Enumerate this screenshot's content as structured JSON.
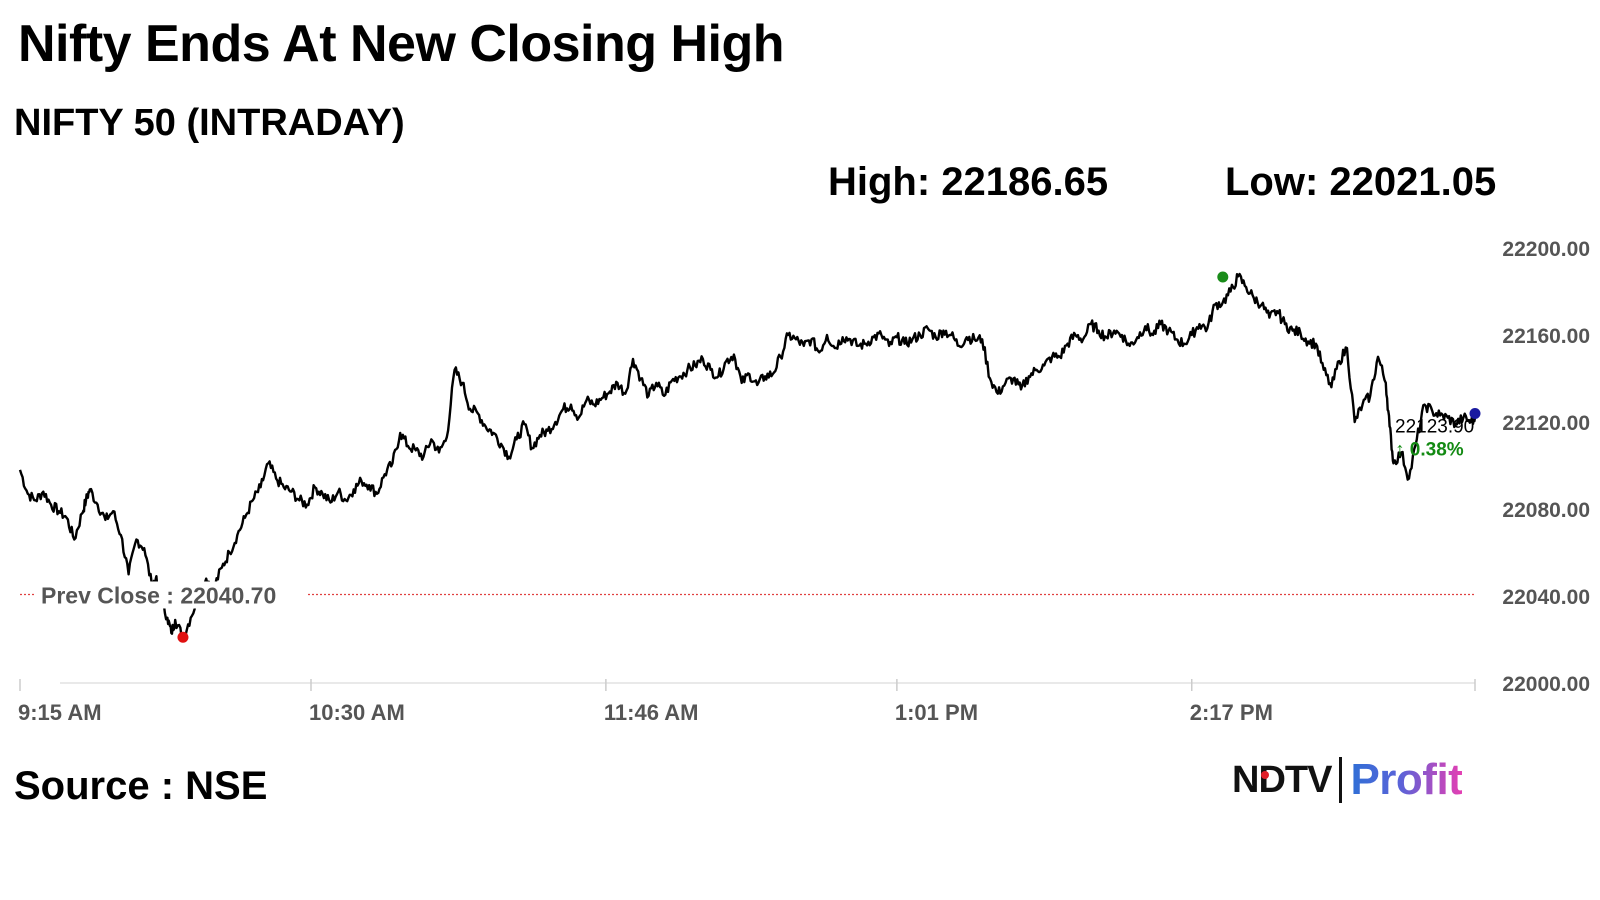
{
  "header": {
    "title": "Nifty Ends At New Closing High",
    "subtitle": "NIFTY 50 (INTRADAY)",
    "high_label": "High: 22186.65",
    "low_label": "Low: 22021.05"
  },
  "footer": {
    "source": "Source : NSE",
    "logo_ndtv": "NDTV",
    "logo_profit": "Profit"
  },
  "colors": {
    "line": "#000000",
    "prev_close": "#e04040",
    "high_marker": "#1a8c1a",
    "low_marker": "#e01010",
    "last_marker": "#1a1aa0",
    "change_up": "#138a13"
  },
  "chart_data": {
    "type": "line",
    "title": "NIFTY 50 (INTRADAY)",
    "xlabel": "",
    "ylabel": "",
    "ylim": [
      22000,
      22200
    ],
    "yticks": [
      22000,
      22040,
      22080,
      22120,
      22160,
      22200
    ],
    "ytick_labels": [
      "22000.00",
      "22040.00",
      "22080.00",
      "22120.00",
      "22160.00",
      "22200.00"
    ],
    "xlim_minutes": [
      0,
      375
    ],
    "xticks_minutes": [
      0,
      75,
      151,
      226,
      302
    ],
    "xtick_labels": [
      "9:15 AM",
      "10:30 AM",
      "11:46 AM",
      "1:01 PM",
      "2:17 PM"
    ],
    "prev_close": 22040.7,
    "prev_close_label": "Prev Close : 22040.70",
    "high": {
      "minute": 310,
      "value": 22186.65
    },
    "low": {
      "minute": 42,
      "value": 22021.05
    },
    "last": {
      "minute": 375,
      "value": 22123.9,
      "label": "22123.90",
      "change_label": "↑ 0.38%"
    },
    "series": [
      {
        "x": [
          0,
          2,
          4,
          6,
          8,
          10,
          12,
          14,
          16,
          17,
          18,
          20,
          22,
          24,
          26,
          28,
          30,
          32,
          34,
          35,
          36,
          38,
          39,
          40,
          42,
          44,
          46,
          48,
          50,
          52,
          54,
          56,
          58,
          60,
          62,
          64,
          66,
          68,
          70,
          72,
          74,
          76,
          78,
          80,
          82,
          84,
          86,
          88,
          90,
          92,
          94,
          96,
          98,
          100,
          102,
          104,
          106,
          108,
          110,
          112,
          114,
          116,
          118,
          120,
          122,
          124,
          126,
          128,
          130,
          132,
          134,
          136,
          138,
          140,
          142,
          144,
          146,
          148,
          150,
          152,
          154,
          156,
          158,
          160,
          162,
          164,
          166,
          168,
          170,
          172,
          174,
          176,
          178,
          180,
          182,
          184,
          186,
          188,
          190,
          192,
          194,
          196,
          198,
          200,
          202,
          204,
          206,
          208,
          210,
          212,
          214,
          216,
          218,
          220,
          222,
          224,
          226,
          228,
          230,
          232,
          234,
          236,
          238,
          240,
          242,
          244,
          246,
          248,
          250,
          252,
          254,
          256,
          258,
          260,
          262,
          264,
          266,
          268,
          270,
          272,
          274,
          276,
          278,
          280,
          282,
          284,
          286,
          288,
          290,
          292,
          294,
          296,
          298,
          300,
          302,
          304,
          306,
          308,
          310,
          312,
          314,
          316,
          318,
          320,
          322,
          324,
          326,
          328,
          330,
          332,
          334,
          336,
          338,
          340,
          342,
          344,
          346,
          348,
          350,
          352,
          353,
          354,
          356,
          358,
          360,
          362,
          364,
          366,
          368,
          370,
          372,
          374,
          375
        ],
        "values": [
          22098,
          22087,
          22084,
          22088,
          22082,
          22079,
          22076,
          22066,
          22078,
          22084,
          22089,
          22082,
          22075,
          22079,
          22068,
          22050,
          22066,
          22062,
          22045,
          22048,
          22040,
          22030,
          22023,
          22029,
          22021,
          22030,
          22040,
          22048,
          22044,
          22053,
          22060,
          22068,
          22076,
          22084,
          22090,
          22101,
          22094,
          22090,
          22088,
          22084,
          22082,
          22090,
          22087,
          22083,
          22088,
          22084,
          22089,
          22093,
          22091,
          22087,
          22096,
          22101,
          22115,
          22109,
          22107,
          22104,
          22112,
          22106,
          22113,
          22144,
          22138,
          22126,
          22124,
          22118,
          22115,
          22110,
          22104,
          22112,
          22119,
          22108,
          22114,
          22116,
          22120,
          22126,
          22128,
          22122,
          22130,
          22128,
          22131,
          22134,
          22138,
          22133,
          22149,
          22140,
          22132,
          22138,
          22132,
          22139,
          22141,
          22144,
          22146,
          22149,
          22144,
          22141,
          22148,
          22151,
          22138,
          22142,
          22137,
          22141,
          22142,
          22150,
          22160,
          22158,
          22155,
          22158,
          22152,
          22160,
          22154,
          22159,
          22158,
          22155,
          22156,
          22159,
          22160,
          22155,
          22159,
          22156,
          22158,
          22160,
          22163,
          22159,
          22162,
          22160,
          22155,
          22159,
          22158,
          22158,
          22140,
          22133,
          22138,
          22140,
          22135,
          22141,
          22144,
          22146,
          22150,
          22150,
          22156,
          22160,
          22158,
          22165,
          22162,
          22159,
          22162,
          22160,
          22155,
          22159,
          22164,
          22160,
          22165,
          22162,
          22158,
          22156,
          22160,
          22165,
          22163,
          22174,
          22175,
          22180,
          22187,
          22182,
          22177,
          22174,
          22168,
          22171,
          22165,
          22162,
          22161,
          22157,
          22156,
          22144,
          22136,
          22148,
          22154,
          22120,
          22128,
          22132,
          22150,
          22138,
          22118,
          22101,
          22106,
          22094,
          22112,
          22128,
          22125,
          22123,
          22122,
          22119,
          22122,
          22120,
          22122
        ]
      }
    ]
  }
}
